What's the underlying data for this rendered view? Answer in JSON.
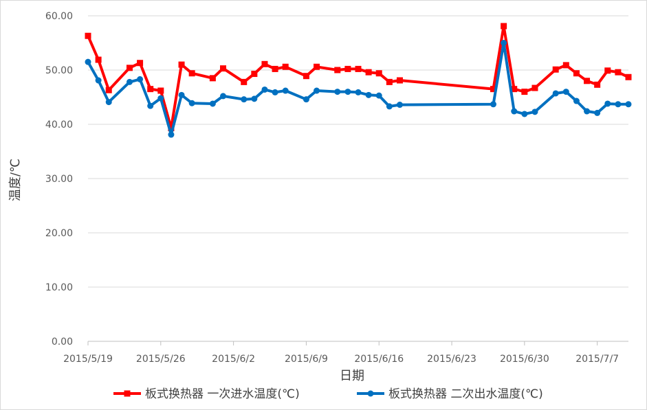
{
  "chart_data": {
    "type": "line",
    "title": "",
    "xlabel": "日期",
    "ylabel": "温度/℃",
    "ylim": [
      0,
      60
    ],
    "yticks": [
      "0.00",
      "10.00",
      "20.00",
      "30.00",
      "40.00",
      "50.00",
      "60.00"
    ],
    "xlim": [
      "2015-05-19",
      "2015-07-10"
    ],
    "xticks": [
      {
        "date": "2015-05-19",
        "label": "2015/5/19"
      },
      {
        "date": "2015-05-26",
        "label": "2015/5/26"
      },
      {
        "date": "2015-06-02",
        "label": "2015/6/2"
      },
      {
        "date": "2015-06-09",
        "label": "2015/6/9"
      },
      {
        "date": "2015-06-16",
        "label": "2015/6/16"
      },
      {
        "date": "2015-06-23",
        "label": "2015/6/23"
      },
      {
        "date": "2015-06-30",
        "label": "2015/6/30"
      },
      {
        "date": "2015-07-07",
        "label": "2015/7/7"
      }
    ],
    "grid": true,
    "legend": "bottom",
    "series": [
      {
        "name": "板式换热器 一次进水温度(℃)",
        "color": "#ff0000",
        "marker": "square",
        "points": [
          [
            "2015-05-19",
            56.3
          ],
          [
            "2015-05-20",
            51.9
          ],
          [
            "2015-05-21",
            46.3
          ],
          [
            "2015-05-23",
            50.4
          ],
          [
            "2015-05-24",
            51.3
          ],
          [
            "2015-05-25",
            46.5
          ],
          [
            "2015-05-26",
            46.2
          ],
          [
            "2015-05-27",
            39.3
          ],
          [
            "2015-05-28",
            51.0
          ],
          [
            "2015-05-29",
            49.4
          ],
          [
            "2015-05-31",
            48.5
          ],
          [
            "2015-06-01",
            50.3
          ],
          [
            "2015-06-03",
            47.8
          ],
          [
            "2015-06-04",
            49.3
          ],
          [
            "2015-06-05",
            51.1
          ],
          [
            "2015-06-06",
            50.2
          ],
          [
            "2015-06-07",
            50.6
          ],
          [
            "2015-06-09",
            48.9
          ],
          [
            "2015-06-10",
            50.6
          ],
          [
            "2015-06-12",
            50.0
          ],
          [
            "2015-06-13",
            50.2
          ],
          [
            "2015-06-14",
            50.2
          ],
          [
            "2015-06-15",
            49.6
          ],
          [
            "2015-06-16",
            49.4
          ],
          [
            "2015-06-17",
            47.8
          ],
          [
            "2015-06-18",
            48.1
          ],
          [
            "2015-06-27",
            46.5
          ],
          [
            "2015-06-28",
            58.1
          ],
          [
            "2015-06-29",
            46.5
          ],
          [
            "2015-06-30",
            46.0
          ],
          [
            "2015-07-01",
            46.7
          ],
          [
            "2015-07-03",
            50.1
          ],
          [
            "2015-07-04",
            50.9
          ],
          [
            "2015-07-05",
            49.4
          ],
          [
            "2015-07-06",
            48.0
          ],
          [
            "2015-07-07",
            47.3
          ],
          [
            "2015-07-08",
            49.9
          ],
          [
            "2015-07-09",
            49.6
          ],
          [
            "2015-07-10",
            48.7
          ]
        ]
      },
      {
        "name": "板式换热器 二次出水温度(℃)",
        "color": "#0070c0",
        "marker": "circle",
        "points": [
          [
            "2015-05-19",
            51.5
          ],
          [
            "2015-05-20",
            48.1
          ],
          [
            "2015-05-21",
            44.1
          ],
          [
            "2015-05-23",
            47.8
          ],
          [
            "2015-05-24",
            48.3
          ],
          [
            "2015-05-25",
            43.4
          ],
          [
            "2015-05-26",
            44.8
          ],
          [
            "2015-05-27",
            38.1
          ],
          [
            "2015-05-28",
            45.4
          ],
          [
            "2015-05-29",
            43.9
          ],
          [
            "2015-05-31",
            43.8
          ],
          [
            "2015-06-01",
            45.2
          ],
          [
            "2015-06-03",
            44.6
          ],
          [
            "2015-06-04",
            44.7
          ],
          [
            "2015-06-05",
            46.4
          ],
          [
            "2015-06-06",
            45.9
          ],
          [
            "2015-06-07",
            46.2
          ],
          [
            "2015-06-09",
            44.6
          ],
          [
            "2015-06-10",
            46.2
          ],
          [
            "2015-06-12",
            46.0
          ],
          [
            "2015-06-13",
            46.0
          ],
          [
            "2015-06-14",
            45.9
          ],
          [
            "2015-06-15",
            45.4
          ],
          [
            "2015-06-16",
            45.3
          ],
          [
            "2015-06-17",
            43.3
          ],
          [
            "2015-06-18",
            43.6
          ],
          [
            "2015-06-27",
            43.7
          ],
          [
            "2015-06-28",
            55.0
          ],
          [
            "2015-06-29",
            42.4
          ],
          [
            "2015-06-30",
            41.9
          ],
          [
            "2015-07-01",
            42.3
          ],
          [
            "2015-07-03",
            45.7
          ],
          [
            "2015-07-04",
            46.0
          ],
          [
            "2015-07-05",
            44.3
          ],
          [
            "2015-07-06",
            42.4
          ],
          [
            "2015-07-07",
            42.1
          ],
          [
            "2015-07-08",
            43.8
          ],
          [
            "2015-07-09",
            43.7
          ],
          [
            "2015-07-10",
            43.7
          ]
        ]
      }
    ]
  }
}
